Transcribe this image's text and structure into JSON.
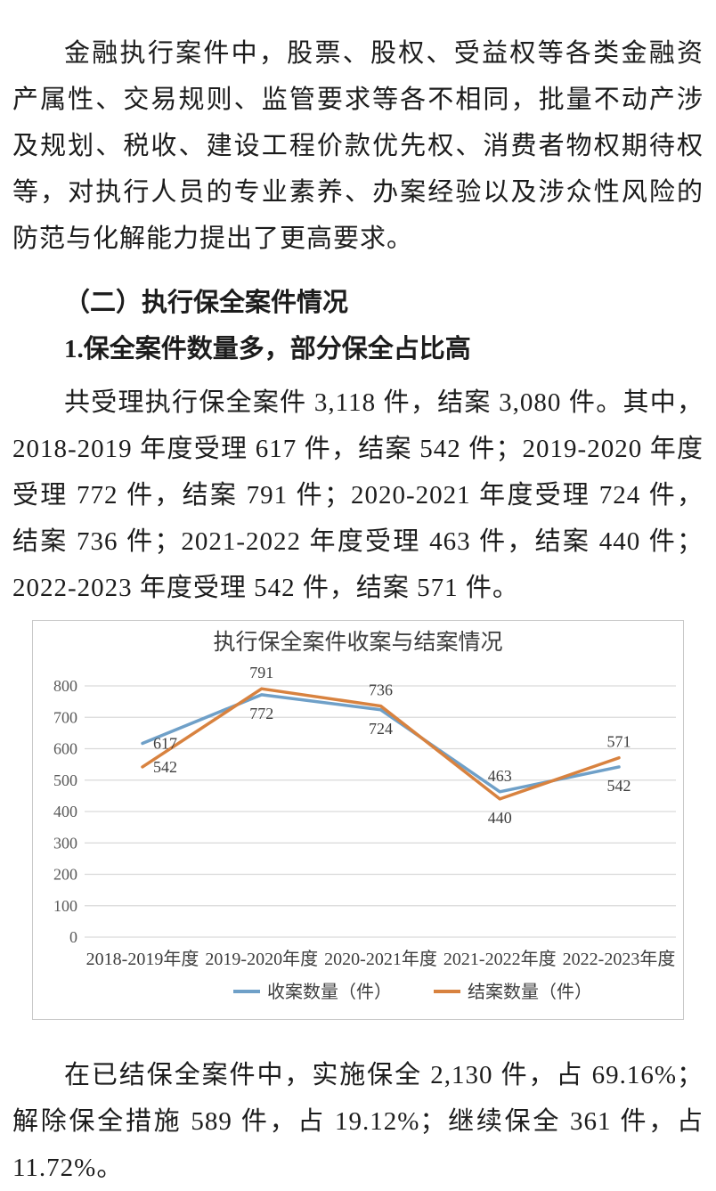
{
  "page": {
    "paragraph1": "金融执行案件中，股票、股权、受益权等各类金融资产属性、交易规则、监管要求等各不相同，批量不动产涉及规划、税收、建设工程价款优先权、消费者物权期待权等，对执行人员的专业素养、办案经验以及涉众性风险的防范与化解能力提出了更高要求。",
    "heading_section": "（二）执行保全案件情况",
    "heading_sub": "1.保全案件数量多，部分保全占比高",
    "paragraph2": "共受理执行保全案件 3,118 件，结案 3,080 件。其中，2018-2019 年度受理 617 件，结案 542 件；2019-2020 年度受理 772 件，结案 791 件；2020-2021 年度受理 724 件，结案 736 件；2021-2022 年度受理 463 件，结案 440 件；2022-2023 年度受理 542 件，结案 571 件。",
    "paragraph3": "在已结保全案件中，实施保全 2,130 件，占 69.16%；解除保全措施 589 件，占 19.12%；继续保全 361 件，占 11.72%。"
  },
  "chart_data": {
    "type": "line",
    "title": "执行保全案件收案与结案情况",
    "categories": [
      "2018-2019年度",
      "2019-2020年度",
      "2020-2021年度",
      "2021-2022年度",
      "2022-2023年度"
    ],
    "series": [
      {
        "name": "收案数量（件）",
        "color": "#6fa0c8",
        "values": [
          617,
          772,
          724,
          463,
          542
        ]
      },
      {
        "name": "结案数量（件）",
        "color": "#d8823f",
        "values": [
          542,
          791,
          736,
          440,
          571
        ]
      }
    ],
    "ylim": [
      0,
      800
    ],
    "ytick_step": 100,
    "grid": true,
    "legend_position": "bottom",
    "colors": {
      "gridline": "#d9d9d9",
      "tick_label": "#595959",
      "data_label": "#3d3d3d",
      "title": "#3d3d3d",
      "axis_label": "#3d3d3d"
    }
  }
}
